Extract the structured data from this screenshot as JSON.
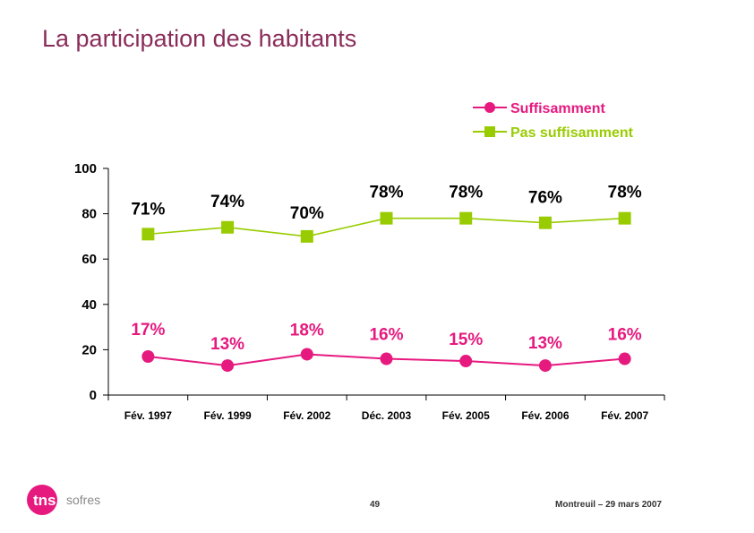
{
  "slide": {
    "title": "La participation des habitants",
    "page_number": "49",
    "place_date": "Montreuil – 29 mars 2007",
    "logo_main": "tns",
    "logo_sub": "sofres"
  },
  "colors": {
    "title": "#8a2c5a",
    "series_1": "#e6197f",
    "series_2": "#99cc00"
  },
  "chart_data": {
    "type": "line",
    "title": "",
    "xlabel": "",
    "ylabel": "",
    "ylim": [
      0,
      100
    ],
    "yticks": [
      0,
      20,
      40,
      60,
      80,
      100
    ],
    "categories": [
      "Fév. 1997",
      "Fév. 1999",
      "Fév. 2002",
      "Déc. 2003",
      "Fév. 2005",
      "Fév. 2006",
      "Fév. 2007"
    ],
    "legend_position": "top-right",
    "series": [
      {
        "name": "Suffisamment",
        "marker": "circle",
        "values": [
          17,
          13,
          18,
          16,
          15,
          13,
          16
        ],
        "labels": [
          "17%",
          "13%",
          "18%",
          "16%",
          "15%",
          "13%",
          "16%"
        ]
      },
      {
        "name": "Pas suffisamment",
        "marker": "square",
        "values": [
          71,
          74,
          70,
          78,
          78,
          76,
          78
        ],
        "labels": [
          "71%",
          "74%",
          "70%",
          "78%",
          "78%",
          "76%",
          "78%"
        ]
      }
    ]
  }
}
